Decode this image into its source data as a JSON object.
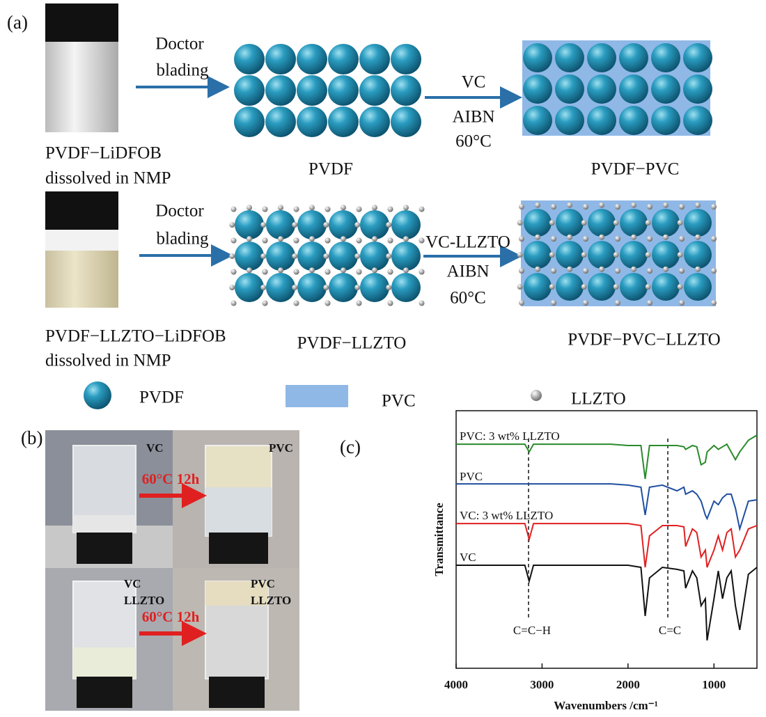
{
  "panel_a": {
    "label": "(a)",
    "row1": {
      "source": [
        "PVDF−LiDFOB",
        "dissolved in NMP"
      ],
      "step1": [
        "Doctor",
        "blading"
      ],
      "product1": "PVDF",
      "step2": [
        "VC",
        "AIBN",
        "60°C"
      ],
      "product2": "PVDF−PVC"
    },
    "row2": {
      "source": [
        "PVDF−LLZTO−LiDFOB",
        "dissolved in NMP"
      ],
      "step1": [
        "Doctor",
        "blading"
      ],
      "product1": "PVDF−LLZTO",
      "step2": [
        "VC-LLZTO",
        "AIBN",
        "60°C"
      ],
      "product2": "PVDF−PVC−LLZTO"
    },
    "legend": [
      "PVDF",
      "PVC",
      "LLZTO"
    ]
  },
  "panel_b": {
    "label": "(b)",
    "top": {
      "before": "VC",
      "after": "PVC",
      "condition": "60°C 12h"
    },
    "bottom": {
      "before": [
        "VC",
        "LLZTO"
      ],
      "after": [
        "PVC",
        "LLZTO"
      ],
      "condition": "60°C 12h"
    }
  },
  "chart_data": {
    "type": "line",
    "label": "(c)",
    "y_label": "Transmittance",
    "x_label": "Wavenumbers /cm⁻¹",
    "x": [
      4000,
      3500,
      3200,
      3150,
      3100,
      2900,
      2200,
      2000,
      1850,
      1800,
      1750,
      1600,
      1430,
      1350,
      1330,
      1250,
      1200,
      1150,
      1100,
      1080,
      1000,
      950,
      900,
      850,
      800,
      750,
      700,
      600,
      500
    ],
    "xlim": [
      4000,
      500
    ],
    "xticks": [
      4000,
      3000,
      2000,
      1000
    ],
    "ylim": [
      0,
      100
    ],
    "annotations": [
      "C=C−H",
      "C=C"
    ],
    "series": [
      {
        "name": "PVC: 3 wt% LLZTO",
        "color": "#2a8a2a",
        "values": [
          87,
          87,
          87,
          84,
          87,
          87,
          87,
          86.5,
          86.5,
          73.5,
          86.5,
          86.5,
          86.5,
          86,
          85,
          86.5,
          86,
          79,
          80,
          84,
          86.5,
          85,
          86,
          87,
          84,
          81,
          84,
          88.5,
          90.5
        ]
      },
      {
        "name": "PVC",
        "color": "#1f4fa0",
        "values": [
          71.6,
          71.6,
          71.6,
          71.6,
          71.6,
          71.6,
          71.6,
          71.1,
          70.3,
          59.5,
          70.3,
          71.1,
          68.9,
          70.3,
          67.6,
          68.9,
          67.6,
          64.9,
          59.5,
          58.1,
          64.9,
          63.5,
          66.2,
          67.6,
          67.6,
          62.2,
          54.1,
          64.9,
          65.4
        ]
      },
      {
        "name": "VC: 3 wt% LLZTO",
        "color": "#e02020",
        "values": [
          56.2,
          56.2,
          56.2,
          50,
          56.2,
          56.2,
          56.2,
          56.2,
          55.4,
          39.2,
          51.4,
          55.4,
          55.4,
          54.9,
          47.3,
          54.1,
          52.7,
          43.2,
          45.9,
          39.2,
          45.9,
          51.4,
          45.9,
          52.7,
          54.1,
          43.2,
          45.9,
          54.1,
          55.4
        ]
      },
      {
        "name": "VC",
        "color": "#111111",
        "values": [
          40,
          40,
          40,
          33.8,
          40,
          40,
          40,
          40,
          39.2,
          20.3,
          35.1,
          39.2,
          38.4,
          37.8,
          31.1,
          37.8,
          35.1,
          24.3,
          27,
          10.8,
          27,
          37.8,
          27,
          35.1,
          37.8,
          24.3,
          14.9,
          36.5,
          39.2
        ]
      }
    ]
  }
}
